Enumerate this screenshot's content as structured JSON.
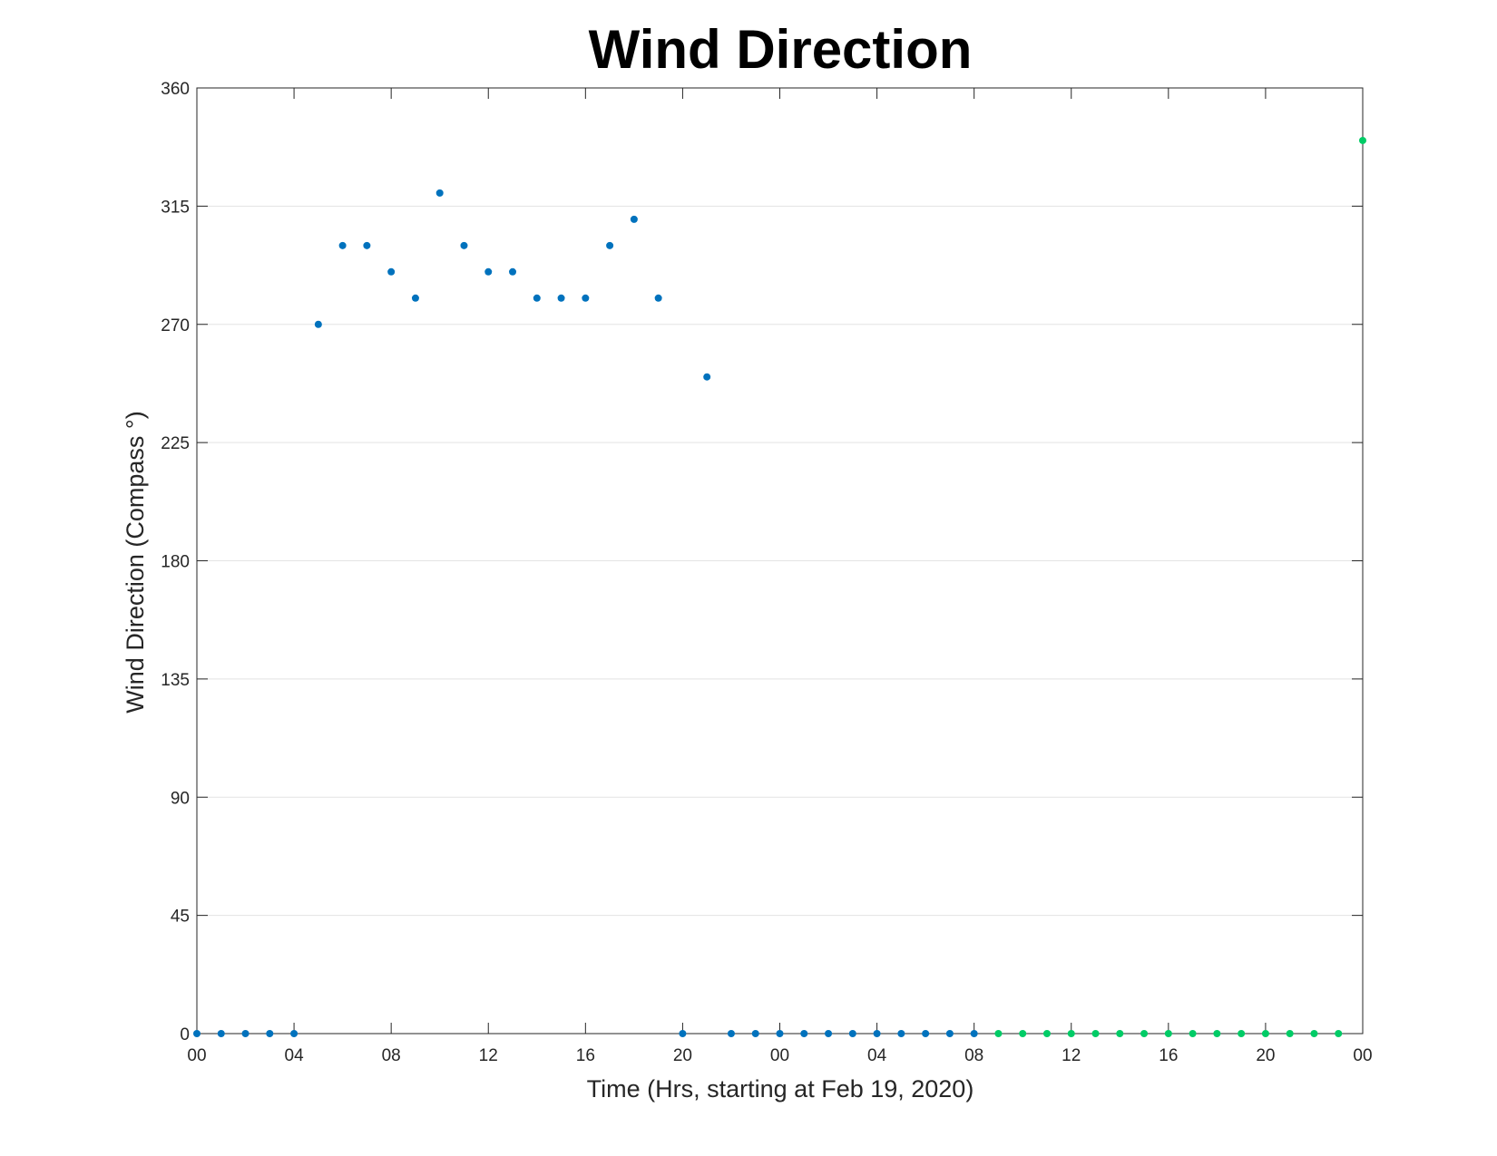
{
  "chart_data": {
    "type": "scatter",
    "title": "Wind Direction",
    "xlabel": "Time (Hrs, starting at Feb 19, 2020)",
    "ylabel": "Wind Direction (Compass °)",
    "xlim": [
      0,
      48
    ],
    "ylim": [
      0,
      360
    ],
    "grid": "horizontal",
    "x_ticks": [
      {
        "value": 0,
        "label": "00"
      },
      {
        "value": 4,
        "label": "04"
      },
      {
        "value": 8,
        "label": "08"
      },
      {
        "value": 12,
        "label": "12"
      },
      {
        "value": 16,
        "label": "16"
      },
      {
        "value": 20,
        "label": "20"
      },
      {
        "value": 24,
        "label": "00"
      },
      {
        "value": 28,
        "label": "04"
      },
      {
        "value": 32,
        "label": "08"
      },
      {
        "value": 36,
        "label": "12"
      },
      {
        "value": 40,
        "label": "16"
      },
      {
        "value": 44,
        "label": "20"
      },
      {
        "value": 48,
        "label": "00"
      }
    ],
    "y_ticks": [
      {
        "value": 0,
        "label": "0"
      },
      {
        "value": 45,
        "label": "45"
      },
      {
        "value": 90,
        "label": "90"
      },
      {
        "value": 135,
        "label": "135"
      },
      {
        "value": 180,
        "label": "180"
      },
      {
        "value": 225,
        "label": "225"
      },
      {
        "value": 270,
        "label": "270"
      },
      {
        "value": 315,
        "label": "315"
      },
      {
        "value": 360,
        "label": "360"
      }
    ],
    "series": [
      {
        "color": "#0072BD",
        "points": [
          [
            0,
            0
          ],
          [
            1,
            0
          ],
          [
            2,
            0
          ],
          [
            3,
            0
          ],
          [
            4,
            0
          ],
          [
            5,
            270
          ],
          [
            6,
            300
          ],
          [
            7,
            300
          ],
          [
            8,
            290
          ],
          [
            9,
            280
          ],
          [
            10,
            320
          ],
          [
            11,
            300
          ],
          [
            12,
            290
          ],
          [
            13,
            290
          ],
          [
            14,
            280
          ],
          [
            15,
            280
          ],
          [
            16,
            280
          ],
          [
            17,
            300
          ],
          [
            18,
            310
          ],
          [
            19,
            280
          ],
          [
            20,
            0
          ],
          [
            21,
            250
          ],
          [
            22,
            0
          ],
          [
            23,
            0
          ],
          [
            24,
            0
          ],
          [
            25,
            0
          ],
          [
            26,
            0
          ],
          [
            27,
            0
          ],
          [
            28,
            0
          ],
          [
            29,
            0
          ],
          [
            30,
            0
          ],
          [
            31,
            0
          ],
          [
            32,
            0
          ]
        ]
      },
      {
        "color": "#00CC66",
        "points": [
          [
            33,
            0
          ],
          [
            34,
            0
          ],
          [
            35,
            0
          ],
          [
            36,
            0
          ],
          [
            37,
            0
          ],
          [
            38,
            0
          ],
          [
            39,
            0
          ],
          [
            40,
            0
          ],
          [
            41,
            0
          ],
          [
            42,
            0
          ],
          [
            43,
            0
          ],
          [
            44,
            0
          ],
          [
            45,
            0
          ],
          [
            46,
            0
          ],
          [
            47,
            0
          ],
          [
            48,
            340
          ]
        ]
      }
    ]
  }
}
